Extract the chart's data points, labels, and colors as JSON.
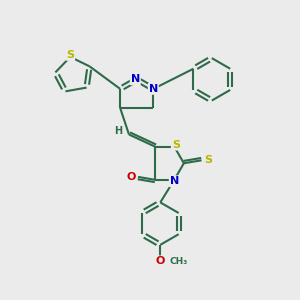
{
  "bg_color": "#ebebeb",
  "bond_color": "#2d6b4a",
  "bond_color_dark": "#1a4a30",
  "bond_width": 1.5,
  "atom_colors": {
    "S": "#b8b800",
    "N": "#0000cc",
    "O": "#cc0000",
    "C": "#2d6b4a",
    "H": "#2d6b4a"
  },
  "font_size": 8,
  "fig_size": [
    3.0,
    3.0
  ],
  "dpi": 100
}
